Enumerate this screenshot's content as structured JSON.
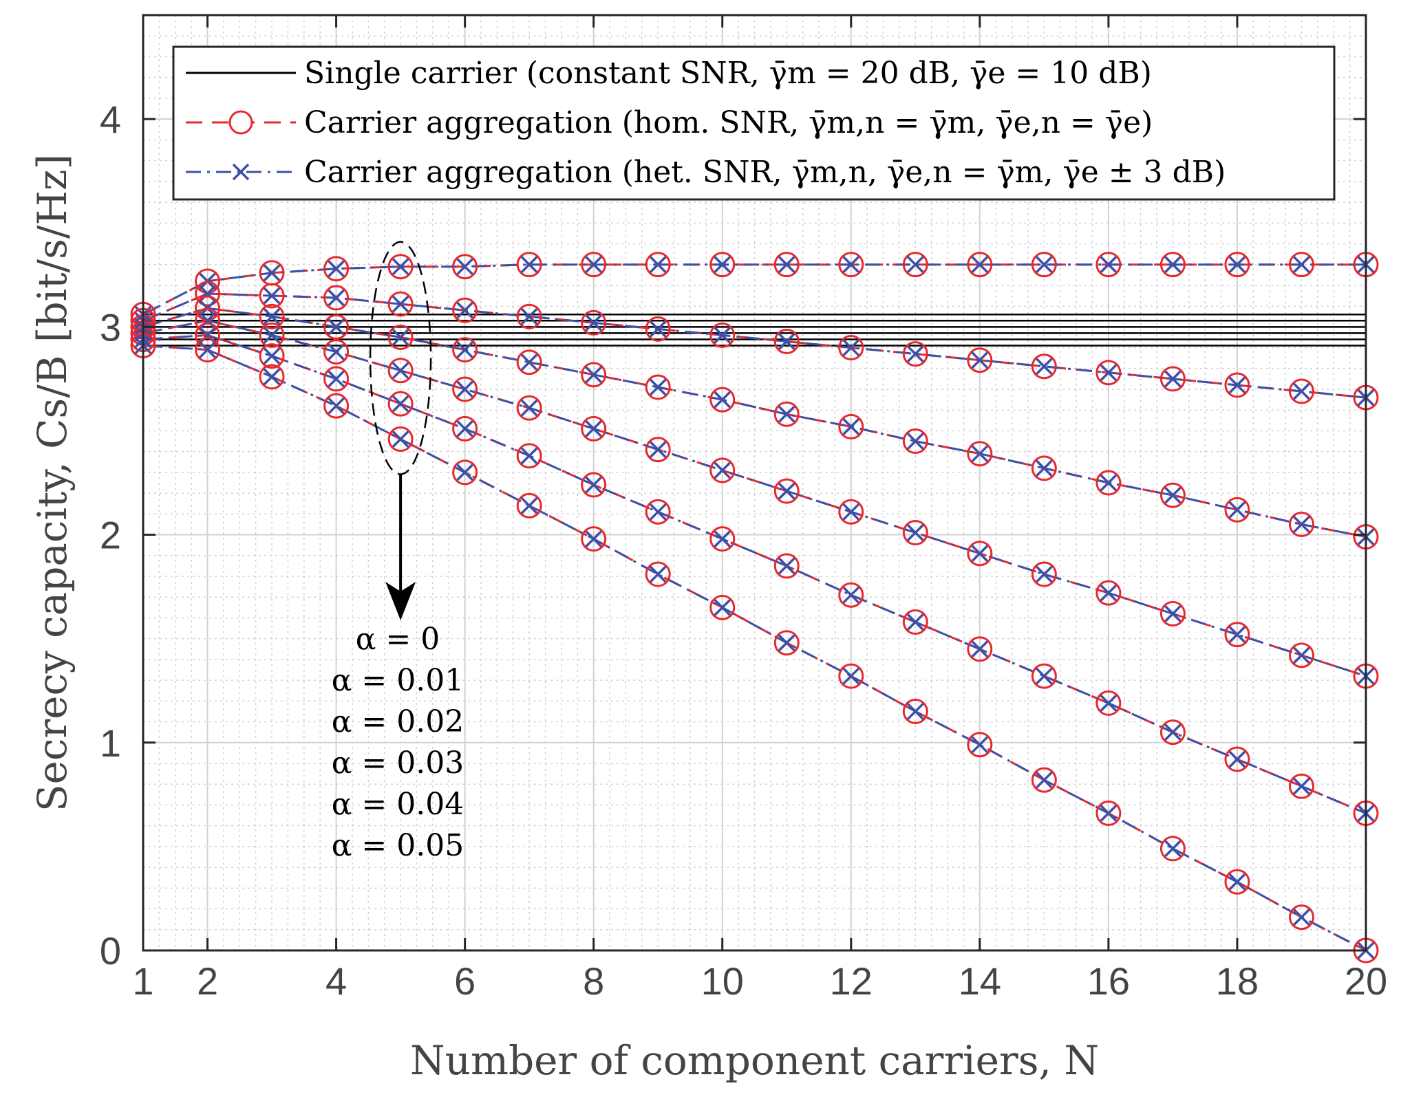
{
  "chart_data": {
    "type": "line",
    "title": "",
    "xlabel": "Number of component carriers, N",
    "ylabel": "Secrecy capacity, Cs/B [bit/s/Hz]",
    "xlim": [
      1,
      20
    ],
    "ylim": [
      0,
      4.5
    ],
    "grid": true,
    "minor_grid": true,
    "legend_position": "top",
    "xticks": [
      1,
      2,
      4,
      6,
      8,
      10,
      12,
      14,
      16,
      18,
      20
    ],
    "xtick_labels": [
      "1",
      "2",
      "4",
      "6",
      "8",
      "10",
      "12",
      "14",
      "16",
      "18",
      "20"
    ],
    "yticks": [
      0,
      1,
      2,
      3,
      4
    ],
    "ytick_labels": [
      "0",
      "1",
      "2",
      "3",
      "4"
    ],
    "colors": {
      "single": "#000000",
      "hom": "#e8282d",
      "het": "#3c50a8",
      "grid": "#d2d2d2",
      "axes": "#262626",
      "tick_text": "#444444"
    },
    "legend": [
      {
        "key": "single",
        "label": "Single carrier (constant SNR, γ̄m = 20 dB, γ̄e = 10 dB)"
      },
      {
        "key": "hom",
        "label": "Carrier aggregation (hom. SNR, γ̄m,n = γ̄m, γ̄e,n = γ̄e)"
      },
      {
        "key": "het",
        "label": "Carrier aggregation (het. SNR, γ̄m,n, γ̄e,n = γ̄m, γ̄e ± 3 dB)"
      }
    ],
    "annotation": {
      "labels": [
        "α = 0",
        "α = 0.01",
        "α = 0.02",
        "α = 0.03",
        "α = 0.04",
        "α = 0.05"
      ]
    },
    "x": [
      1,
      2,
      3,
      4,
      5,
      6,
      7,
      8,
      9,
      10,
      11,
      12,
      13,
      14,
      15,
      16,
      17,
      18,
      19,
      20
    ],
    "single_carrier_levels": [
      3.06,
      3.03,
      3.0,
      2.97,
      2.94,
      2.91
    ],
    "series": [
      {
        "name": "α = 0",
        "values": [
          3.06,
          3.22,
          3.26,
          3.28,
          3.29,
          3.29,
          3.3,
          3.3,
          3.3,
          3.3,
          3.3,
          3.3,
          3.3,
          3.3,
          3.3,
          3.3,
          3.3,
          3.3,
          3.3,
          3.3
        ]
      },
      {
        "name": "α = 0.01",
        "values": [
          3.03,
          3.16,
          3.15,
          3.14,
          3.11,
          3.08,
          3.05,
          3.02,
          2.99,
          2.96,
          2.93,
          2.9,
          2.87,
          2.84,
          2.81,
          2.78,
          2.75,
          2.72,
          2.69,
          2.66
        ]
      },
      {
        "name": "α = 0.02",
        "values": [
          3.0,
          3.09,
          3.05,
          3.0,
          2.95,
          2.89,
          2.83,
          2.77,
          2.71,
          2.65,
          2.58,
          2.52,
          2.45,
          2.39,
          2.32,
          2.25,
          2.19,
          2.12,
          2.05,
          1.99
        ]
      },
      {
        "name": "α = 0.03",
        "values": [
          2.97,
          3.03,
          2.96,
          2.88,
          2.79,
          2.7,
          2.61,
          2.51,
          2.41,
          2.31,
          2.21,
          2.11,
          2.01,
          1.91,
          1.81,
          1.72,
          1.62,
          1.52,
          1.42,
          1.32
        ]
      },
      {
        "name": "α = 0.04",
        "values": [
          2.94,
          2.96,
          2.86,
          2.75,
          2.63,
          2.51,
          2.38,
          2.24,
          2.11,
          1.98,
          1.85,
          1.71,
          1.58,
          1.45,
          1.32,
          1.19,
          1.05,
          0.92,
          0.79,
          0.66
        ]
      },
      {
        "name": "α = 0.05",
        "values": [
          2.91,
          2.89,
          2.76,
          2.62,
          2.46,
          2.3,
          2.14,
          1.98,
          1.81,
          1.65,
          1.48,
          1.32,
          1.15,
          0.99,
          0.82,
          0.66,
          0.49,
          0.33,
          0.16,
          0.0
        ]
      }
    ]
  }
}
